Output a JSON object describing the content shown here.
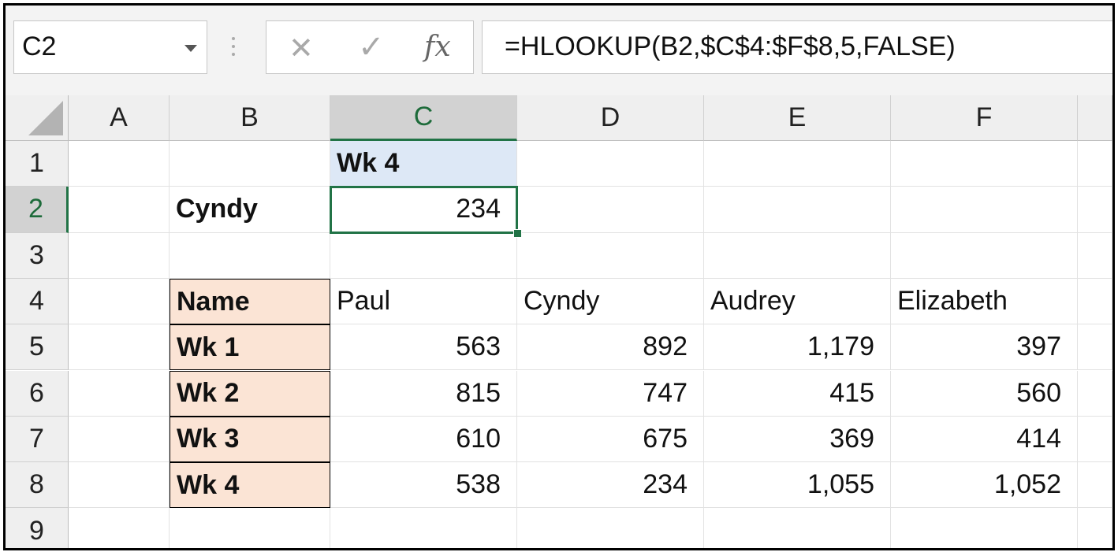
{
  "formula_bar": {
    "name_box": "C2",
    "cancel_icon": "close-icon",
    "enter_icon": "check-icon",
    "function_label": "fx",
    "formula": "=HLOOKUP(B2,$C$4:$F$8,5,FALSE)"
  },
  "columns": [
    "A",
    "B",
    "C",
    "D",
    "E",
    "F"
  ],
  "rows": [
    "1",
    "2",
    "3",
    "4",
    "5",
    "6",
    "7",
    "8",
    "9"
  ],
  "active_cell": {
    "column": "C",
    "row": "2"
  },
  "cells": {
    "C1": "Wk 4",
    "B2": "Cyndy",
    "C2": "234",
    "B4": "Name",
    "C4": "Paul",
    "D4": "Cyndy",
    "E4": "Audrey",
    "F4": "Elizabeth",
    "B5": "Wk 1",
    "C5": "563",
    "D5": "892",
    "E5": "1,179",
    "F5": "397",
    "B6": "Wk 2",
    "C6": "815",
    "D6": "747",
    "E6": "415",
    "F6": "560",
    "B7": "Wk 3",
    "C7": "610",
    "D7": "675",
    "E7": "369",
    "F7": "414",
    "B8": "Wk 4",
    "C8": "538",
    "D8": "234",
    "E8": "1,055",
    "F8": "1,052"
  },
  "colors": {
    "accent_green": "#217346",
    "header_fill": "#fbe4d5",
    "lookup_fill": "#dde8f6"
  }
}
